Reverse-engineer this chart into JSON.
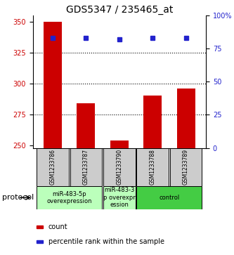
{
  "title": "GDS5347 / 235465_at",
  "samples": [
    "GSM1233786",
    "GSM1233787",
    "GSM1233790",
    "GSM1233788",
    "GSM1233789"
  ],
  "counts": [
    350,
    284,
    254,
    290,
    296
  ],
  "percentile_ranks": [
    83,
    83,
    82,
    83,
    83
  ],
  "ylim_left": [
    248,
    355
  ],
  "ylim_right": [
    0,
    100
  ],
  "yticks_left": [
    250,
    275,
    300,
    325,
    350
  ],
  "ytick_labels_right": [
    "0",
    "25",
    "50",
    "75",
    "100%"
  ],
  "yticks_right": [
    0,
    25,
    50,
    75,
    100
  ],
  "bar_color": "#cc0000",
  "dot_color": "#2222cc",
  "bg_color": "#ffffff",
  "sample_box_color": "#cccccc",
  "left_axis_color": "#cc0000",
  "right_axis_color": "#2222cc",
  "group_defs": [
    {
      "label": "miR-483-5p\noverexpression",
      "start": 0,
      "end": 1,
      "color": "#bbffbb"
    },
    {
      "label": "miR-483-3\np overexpr\nession",
      "start": 2,
      "end": 2,
      "color": "#bbffbb"
    },
    {
      "label": "control",
      "start": 3,
      "end": 4,
      "color": "#44cc44"
    }
  ],
  "legend_count_label": "count",
  "legend_percentile_label": "percentile rank within the sample",
  "protocol_label": "protocol",
  "bar_width": 0.55,
  "title_fontsize": 10,
  "tick_fontsize": 7,
  "sample_fontsize": 5.5,
  "proto_fontsize": 6,
  "legend_fontsize": 7
}
